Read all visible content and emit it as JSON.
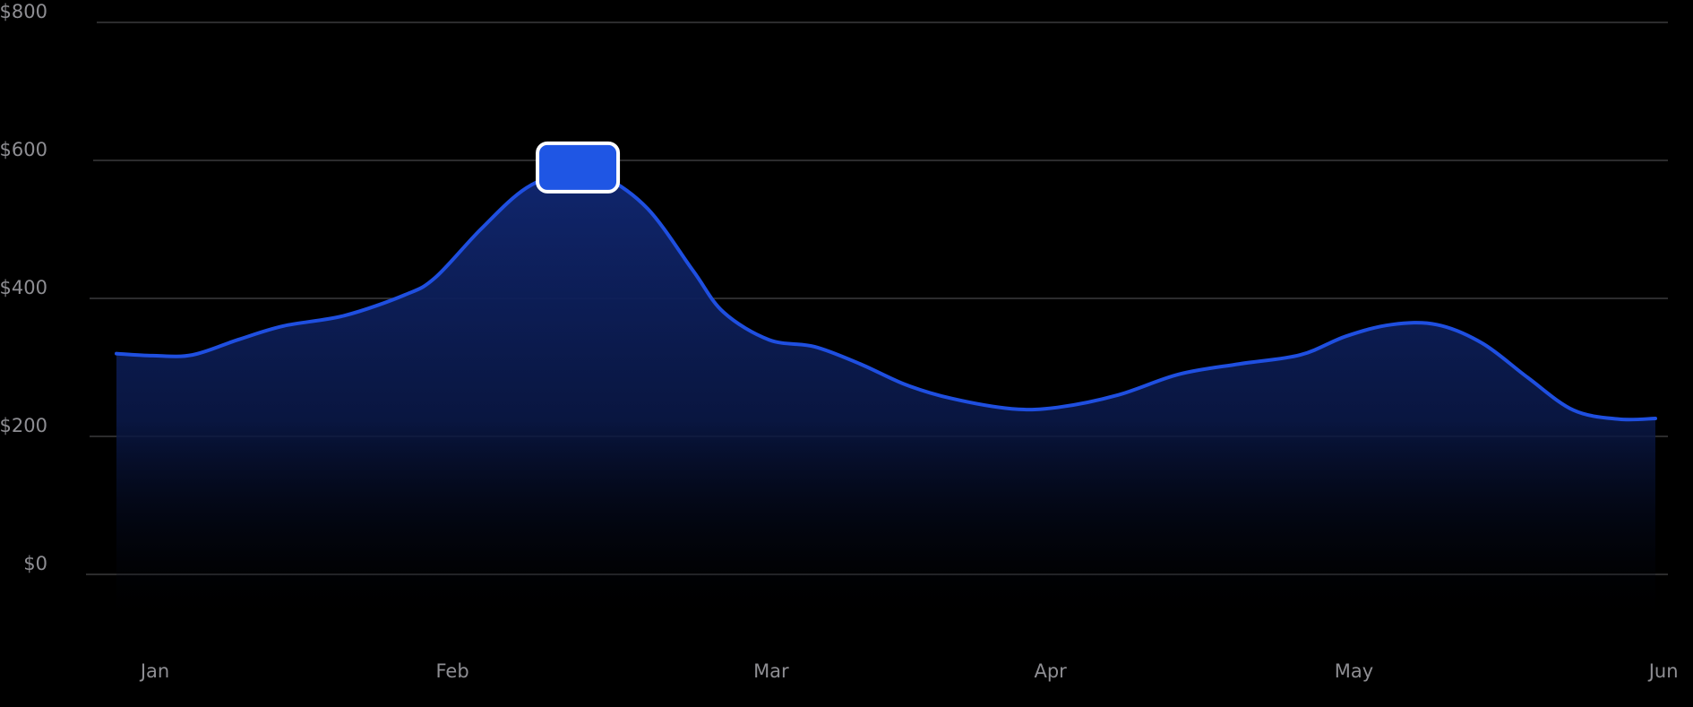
{
  "chart_data": {
    "type": "area",
    "title": "",
    "xlabel": "",
    "ylabel": "",
    "y_ticks": [
      "$800",
      "$600",
      "$400",
      "$200",
      "$0"
    ],
    "y_tick_values": [
      800,
      600,
      400,
      200,
      0
    ],
    "ylim": [
      0,
      800
    ],
    "x_ticks": [
      "Jan",
      "Feb",
      "Mar",
      "Apr",
      "May",
      "Jun"
    ],
    "xlim": [
      0,
      5.07
    ],
    "grid": true,
    "legend": "none",
    "series": [
      {
        "x": [
          0,
          0.12,
          0.25,
          0.4,
          0.55,
          0.75,
          0.95,
          1.05,
          1.2,
          1.35,
          1.5,
          1.6,
          1.75,
          1.9,
          2.0,
          2.15,
          2.3,
          2.45,
          2.6,
          2.75,
          2.95,
          3.1,
          3.3,
          3.5,
          3.7,
          3.9,
          4.05,
          4.2,
          4.35,
          4.5,
          4.65,
          4.8,
          4.95,
          5.07
        ],
        "values": [
          320,
          317,
          318,
          340,
          360,
          375,
          405,
          430,
          500,
          560,
          585,
          578,
          530,
          440,
          380,
          340,
          330,
          305,
          275,
          255,
          240,
          242,
          260,
          290,
          305,
          318,
          345,
          362,
          362,
          335,
          285,
          238,
          225,
          226
        ]
      }
    ],
    "highlight": {
      "x": 1.52,
      "value": 595
    },
    "colors": {
      "line": "#1f4fe0",
      "area_top": "#10266e",
      "grid": "#3a3a3c",
      "tick_label": "#8e8e93",
      "marker_fill": "#1f56e4",
      "marker_border": "#ffffff",
      "background": "#000000"
    }
  }
}
